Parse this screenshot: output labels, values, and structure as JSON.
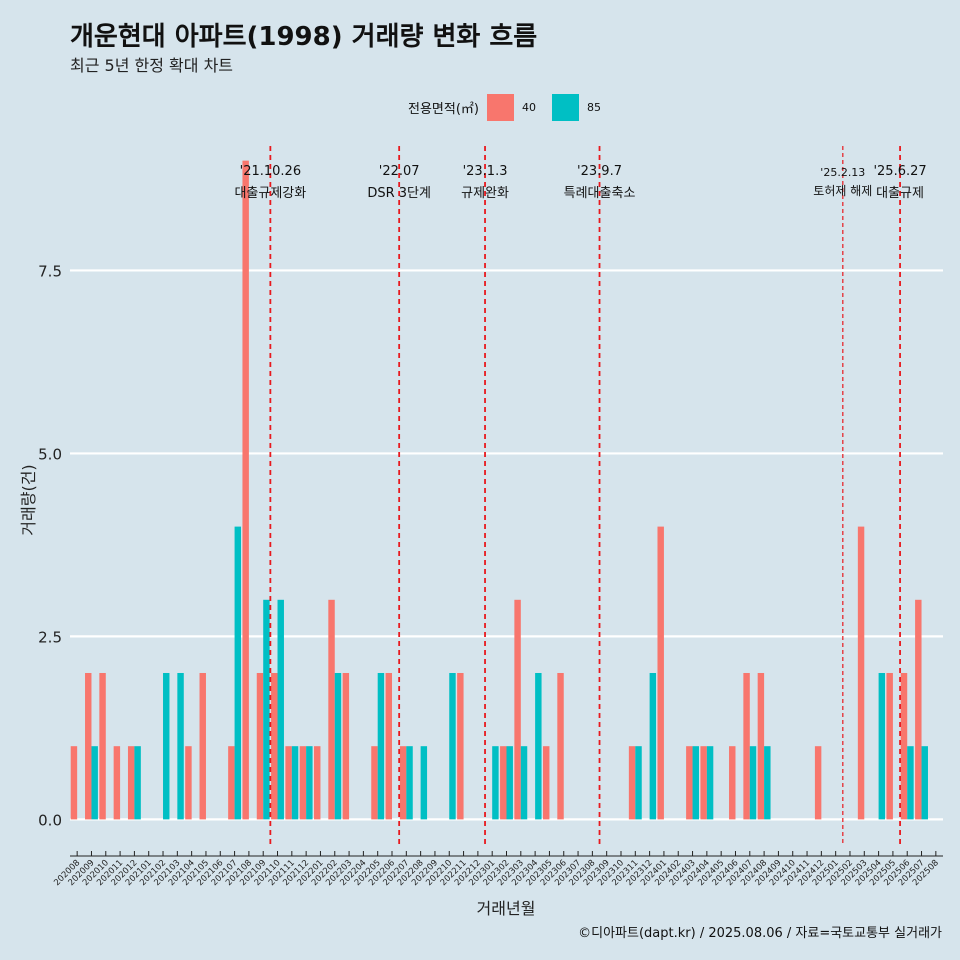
{
  "title": "개운현대 아파트(1998) 거래량 변화 흐름",
  "subtitle": "최근 5년 한정 확대 차트",
  "caption": "©디아파트(dapt.kr) / 2025.08.06 / 자료=국토교통부 실거래가",
  "colors": {
    "s40": "#f8766d",
    "s85": "#00bfc4",
    "policy": "#e8191e",
    "grid": "#ffffff",
    "background": "#d6e4ec"
  },
  "chart_data": {
    "type": "bar",
    "title": "개운현대 아파트(1998) 거래량 변화 흐름",
    "subtitle": "최근 5년 한정 확대 차트",
    "xlabel": "거래년월",
    "ylabel": "거래량(건)",
    "ylim": [
      -0.35,
      9.2
    ],
    "yticks": [
      0,
      2.5,
      5,
      7.5
    ],
    "ytick_labels": [
      "0.0",
      "2.5",
      "5.0",
      "7.5"
    ],
    "legend_title": "전용면적(㎡)",
    "categories": [
      "202008",
      "202009",
      "202010",
      "202011",
      "202012",
      "202101",
      "202102",
      "202103",
      "202104",
      "202105",
      "202106",
      "202107",
      "202108",
      "202109",
      "202110",
      "202111",
      "202112",
      "202201",
      "202202",
      "202203",
      "202204",
      "202205",
      "202206",
      "202207",
      "202208",
      "202209",
      "202210",
      "202211",
      "202212",
      "202301",
      "202302",
      "202303",
      "202304",
      "202305",
      "202306",
      "202307",
      "202308",
      "202309",
      "202310",
      "202311",
      "202312",
      "202401",
      "202402",
      "202403",
      "202404",
      "202405",
      "202406",
      "202407",
      "202408",
      "202409",
      "202410",
      "202411",
      "202412",
      "202501",
      "202502",
      "202503",
      "202504",
      "202505",
      "202506",
      "202507",
      "202508"
    ],
    "series": [
      {
        "name": "40",
        "values": [
          1,
          2,
          2,
          1,
          1,
          0,
          0,
          0,
          1,
          2,
          0,
          1,
          9,
          2,
          2,
          1,
          1,
          1,
          3,
          2,
          0,
          1,
          2,
          1,
          0,
          0,
          0,
          2,
          0,
          0,
          1,
          3,
          0,
          1,
          2,
          0,
          0,
          0,
          0,
          1,
          0,
          4,
          0,
          1,
          1,
          0,
          1,
          2,
          2,
          0,
          0,
          0,
          1,
          0,
          0,
          4,
          0,
          2,
          2,
          3,
          0
        ]
      },
      {
        "name": "85",
        "values": [
          0,
          1,
          0,
          0,
          1,
          0,
          2,
          2,
          0,
          0,
          0,
          4,
          0,
          3,
          3,
          1,
          1,
          0,
          2,
          0,
          0,
          2,
          0,
          1,
          1,
          0,
          2,
          0,
          0,
          1,
          1,
          1,
          2,
          0,
          0,
          0,
          0,
          0,
          0,
          1,
          2,
          0,
          0,
          1,
          1,
          0,
          0,
          1,
          1,
          0,
          0,
          0,
          0,
          0,
          0,
          0,
          2,
          0,
          1,
          1,
          0
        ]
      }
    ],
    "events": [
      {
        "date": "'21.10.26",
        "label": "대출규제강화",
        "at": 14.0,
        "style": "dashed"
      },
      {
        "date": "'22.07",
        "label": "DSR 3단계",
        "at": 23.0,
        "style": "dashed"
      },
      {
        "date": "'23.1.3",
        "label": "규제완화",
        "at": 29.0,
        "style": "dashed"
      },
      {
        "date": "'23.9.7",
        "label": "특례대출축소",
        "at": 37.0,
        "style": "dashed"
      },
      {
        "date": "'25.2.13",
        "label": "토허제 해제",
        "at": 54.0,
        "style": "dashed-thin"
      },
      {
        "date": "'25.6.27",
        "label": "대출규제",
        "at": 58.0,
        "style": "dashed"
      }
    ]
  }
}
